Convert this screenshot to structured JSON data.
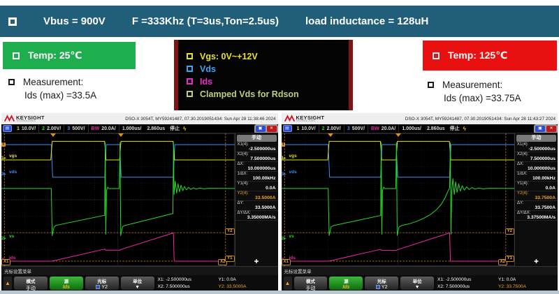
{
  "slide": {
    "header": {
      "vbus": "Vbus = 900V",
      "freq": "F =333Khz (T=3us,Ton=2.5us)",
      "load": "load inductance = 128uH"
    },
    "left": {
      "temp": "Temp:  25℃",
      "measurement_title": "Measurement:",
      "measurement_value": "Ids (max) =33.5A"
    },
    "right": {
      "temp": "Temp:  125℃",
      "measurement_title": "Measurement:",
      "measurement_value": "Ids (max) =33.75A"
    },
    "legend": {
      "items": [
        {
          "label": "Vgs:  0V~+12V",
          "color": "#e8e41c"
        },
        {
          "label": "Vds",
          "color": "#38a8f0"
        },
        {
          "label": "Ids",
          "color": "#e431c4"
        },
        {
          "label": "Clamped Vds for Rdson",
          "color": "#bcd278"
        }
      ]
    },
    "colors": {
      "header_bg": "#215e79",
      "temp_left_bg": "#1fae4d",
      "temp_right_bg": "#e81010"
    }
  },
  "scopes": [
    {
      "brand": "KEYSIGHT",
      "brand_sub": "TECHNOLOGIES",
      "info": "DSO-X 3054T, MY59241487, 07.30.2019051434: Sun Apr 28 11:38:46 2024",
      "channel_bar": {
        "ch1_num": "1",
        "ch1_scale": "10.0V/",
        "ch2_num": "2",
        "ch2_scale": "2.00V/",
        "ch3_num": "3",
        "ch3_scale": "500V/",
        "ch4_num": "BW",
        "ch4_scale": "20.0A/",
        "timebase": "1.000us/",
        "delay": "2.860us",
        "acq": "停止",
        "bolt": "ϟ"
      },
      "markers": {
        "trigger": "T",
        "ch1_label": "vgs",
        "ch3_label": "vds",
        "ch2_label": "vs",
        "ch4_label": "ids"
      },
      "cursor_tags": {
        "x1": "X1",
        "x2": "X2",
        "y1": "Y1",
        "y2": "Y2"
      },
      "panel": {
        "header": "手动",
        "plus": "✚",
        "rows": [
          {
            "label": "X1(4):",
            "value": "-2.500000us"
          },
          {
            "label": "X2(4):",
            "value": "7.500000us"
          },
          {
            "label": "ΔX:",
            "value": "10.000000us"
          },
          {
            "label": "1/ΔX:",
            "value": "100.00kHz"
          },
          {
            "label": "Y1(4):",
            "value": "0.0A"
          },
          {
            "label": "Y2(4):",
            "value": "33.5000A"
          },
          {
            "label": "ΔY:",
            "value": "33.5000A"
          },
          {
            "label": "ΔY/ΔX:",
            "value": "3.35000MA/s"
          }
        ]
      },
      "menu": {
        "title": "光标设置菜单",
        "back": "▲",
        "btn1_top": "模式",
        "btn1_bottom": "手动",
        "btn2_top": "源",
        "btn2_bottom": "Ids",
        "btn3_top": "光标",
        "btn3_bottom": "Y2",
        "btn4_top": "单位",
        "btn4_bottom": "▼",
        "x1": "X1: -2.500000us",
        "x2": "X2: 7.500000us",
        "y1": "Y1: 0.0A",
        "y2": "Y2: 33.5000A"
      },
      "waveform": {
        "cursors": {
          "x": [
            1.3,
            96.2
          ],
          "y": [
            74.8,
            96.3
          ]
        },
        "traces": [
          {
            "name": "vds",
            "color": "#3f8ef0",
            "points": [
              [
                0,
                8.5
              ],
              [
                21.4,
                8.5
              ],
              [
                22,
                33
              ],
              [
                44.4,
                33
              ],
              [
                45,
                8.5
              ],
              [
                50.8,
                8.5
              ],
              [
                51.4,
                33
              ],
              [
                73.8,
                33
              ],
              [
                74.4,
                8.5
              ],
              [
                100,
                8.5
              ]
            ]
          },
          {
            "name": "vgs",
            "color": "#e6df18",
            "points": [
              [
                0,
                20
              ],
              [
                21.2,
                20
              ],
              [
                21.8,
                6
              ],
              [
                44.3,
                6
              ],
              [
                44.9,
                20
              ],
              [
                50.7,
                20
              ],
              [
                51.3,
                6
              ],
              [
                73.7,
                6
              ],
              [
                74.3,
                20
              ],
              [
                100,
                20
              ]
            ]
          },
          {
            "name": "vs",
            "color": "#28d828",
            "points": [
              [
                0,
                41.5
              ],
              [
                21.4,
                41.5
              ],
              [
                21.8,
                77
              ],
              [
                22.6,
                70.5
              ],
              [
                23.5,
                69.3
              ],
              [
                44,
                61.8
              ],
              [
                44.3,
                61.8
              ],
              [
                44.55,
                7
              ],
              [
                44.8,
                76
              ],
              [
                45.1,
                43
              ],
              [
                45.6,
                40.5
              ],
              [
                46.2,
                41.6
              ],
              [
                50.6,
                41.6
              ],
              [
                50.9,
                7
              ],
              [
                51.2,
                77
              ],
              [
                52,
                70.3
              ],
              [
                53,
                69.4
              ],
              [
                73.3,
                60.5
              ],
              [
                73.6,
                60.5
              ],
              [
                73.85,
                7
              ],
              [
                74.1,
                46
              ],
              [
                74.6,
                36
              ],
              [
                75.2,
                45
              ],
              [
                75.8,
                38
              ],
              [
                76.4,
                44
              ],
              [
                77.1,
                39
              ],
              [
                77.8,
                43.2
              ],
              [
                78.6,
                40
              ],
              [
                79.4,
                42.6
              ],
              [
                80.3,
                40.7
              ],
              [
                81.3,
                42.2
              ],
              [
                82.4,
                41
              ],
              [
                83.6,
                42
              ],
              [
                85,
                41.2
              ],
              [
                87,
                41.8
              ],
              [
                89,
                41.4
              ],
              [
                100,
                41.5
              ]
            ]
          },
          {
            "name": "ids",
            "color": "#ec28a8",
            "points": [
              [
                0,
                96.3
              ],
              [
                21.6,
                96.3
              ],
              [
                44.4,
                87.2
              ],
              [
                44.7,
                88
              ],
              [
                50.9,
                88
              ],
              [
                51.1,
                87.6
              ],
              [
                73.8,
                75
              ],
              [
                74.15,
                96.3
              ],
              [
                100,
                96.3
              ]
            ]
          }
        ]
      }
    },
    {
      "brand": "KEYSIGHT",
      "brand_sub": "TECHNOLOGIES",
      "info": "DSO-X 3054T, MY59241487, 07.30.2019051434: Sun Apr 28 11:43:27 2024",
      "channel_bar": {
        "ch1_num": "1",
        "ch1_scale": "10.0V/",
        "ch2_num": "2",
        "ch2_scale": "2.00V/",
        "ch3_num": "3",
        "ch3_scale": "500V/",
        "ch4_num": "BW",
        "ch4_scale": "20.0A/",
        "timebase": "1.000us/",
        "delay": "2.860us",
        "acq": "停止",
        "bolt": "ϟ"
      },
      "markers": {
        "trigger": "T",
        "ch1_label": "vgs",
        "ch3_label": "vds",
        "ch2_label": "vs",
        "ch4_label": "ids"
      },
      "cursor_tags": {
        "x1": "X1",
        "x2": "X2",
        "y1": "Y1",
        "y2": "Y2"
      },
      "panel": {
        "header": "手动",
        "plus": "✚",
        "rows": [
          {
            "label": "X1(4):",
            "value": "-2.500000us"
          },
          {
            "label": "X2(4):",
            "value": "7.500000us"
          },
          {
            "label": "ΔX:",
            "value": "10.000000us"
          },
          {
            "label": "1/ΔX:",
            "value": "100.00kHz"
          },
          {
            "label": "Y1(4):",
            "value": "0.0A"
          },
          {
            "label": "Y2(4):",
            "value": "33.7500A"
          },
          {
            "label": "ΔY:",
            "value": "33.7500A"
          },
          {
            "label": "ΔY/ΔX:",
            "value": "3.37500MA/s"
          }
        ]
      },
      "menu": {
        "title": "光标设置菜单",
        "back": "▲",
        "btn1_top": "模式",
        "btn1_bottom": "手动",
        "btn2_top": "源",
        "btn2_bottom": "Ids",
        "btn3_top": "光标",
        "btn3_bottom": "Y2",
        "btn4_top": "单位",
        "btn4_bottom": "▼",
        "x1": "X1: -2.500000us",
        "x2": "X2: 7.500000us",
        "y1": "Y1: 0.0A",
        "y2": "Y2: 33.7500A"
      },
      "waveform": {
        "cursors": {
          "x": [
            1.3,
            96.2
          ],
          "y": [
            74.8,
            96.3
          ]
        },
        "traces": [
          {
            "name": "vds",
            "color": "#3f8ef0",
            "points": [
              [
                0,
                8.5
              ],
              [
                20,
                8.5
              ],
              [
                20.6,
                33
              ],
              [
                42.5,
                33
              ],
              [
                43.1,
                8.5
              ],
              [
                49.2,
                8.5
              ],
              [
                49.8,
                33
              ],
              [
                72.1,
                33
              ],
              [
                72.7,
                8.5
              ],
              [
                100,
                8.5
              ]
            ]
          },
          {
            "name": "vgs",
            "color": "#e6df18",
            "points": [
              [
                0,
                20
              ],
              [
                19.8,
                20
              ],
              [
                20.4,
                6
              ],
              [
                42.4,
                6
              ],
              [
                43,
                20
              ],
              [
                49.1,
                20
              ],
              [
                49.7,
                6
              ],
              [
                72,
                6
              ],
              [
                72.6,
                20
              ],
              [
                100,
                20
              ]
            ]
          },
          {
            "name": "vs",
            "color": "#28d828",
            "points": [
              [
                0,
                41.5
              ],
              [
                20,
                41.5
              ],
              [
                20.4,
                77
              ],
              [
                21.2,
                70.5
              ],
              [
                22.2,
                69.5
              ],
              [
                42.2,
                62
              ],
              [
                42.5,
                62
              ],
              [
                42.75,
                7
              ],
              [
                43,
                76
              ],
              [
                43.3,
                43
              ],
              [
                43.8,
                40.5
              ],
              [
                44.4,
                41.6
              ],
              [
                49,
                41.6
              ],
              [
                49.3,
                7
              ],
              [
                49.6,
                77
              ],
              [
                50.4,
                70.5
              ],
              [
                51.5,
                69.5
              ],
              [
                55,
                68
              ],
              [
                58,
                66.3
              ],
              [
                61,
                64
              ],
              [
                64,
                61
              ],
              [
                66.5,
                57.5
              ],
              [
                68.5,
                53.5
              ],
              [
                70,
                49
              ],
              [
                71.3,
                44
              ],
              [
                72.1,
                41
              ],
              [
                72.4,
                7
              ],
              [
                72.7,
                76
              ],
              [
                73,
                44
              ],
              [
                73.5,
                34
              ],
              [
                74.1,
                46
              ],
              [
                74.7,
                36.5
              ],
              [
                75.3,
                44.5
              ],
              [
                76,
                38
              ],
              [
                76.7,
                43.5
              ],
              [
                77.5,
                39.5
              ],
              [
                78.4,
                42.8
              ],
              [
                79.4,
                40.3
              ],
              [
                80.5,
                42.3
              ],
              [
                81.7,
                40.8
              ],
              [
                83,
                42
              ],
              [
                84.5,
                41.2
              ],
              [
                86.5,
                41.8
              ],
              [
                89,
                41.4
              ],
              [
                100,
                41.5
              ]
            ]
          },
          {
            "name": "ids",
            "color": "#ec28a8",
            "points": [
              [
                0,
                96.3
              ],
              [
                20.2,
                96.3
              ],
              [
                42.5,
                87.4
              ],
              [
                42.8,
                88.2
              ],
              [
                49.3,
                88.2
              ],
              [
                49.5,
                87.8
              ],
              [
                72.1,
                75
              ],
              [
                72.45,
                96.3
              ],
              [
                100,
                96.3
              ]
            ]
          }
        ]
      }
    }
  ]
}
